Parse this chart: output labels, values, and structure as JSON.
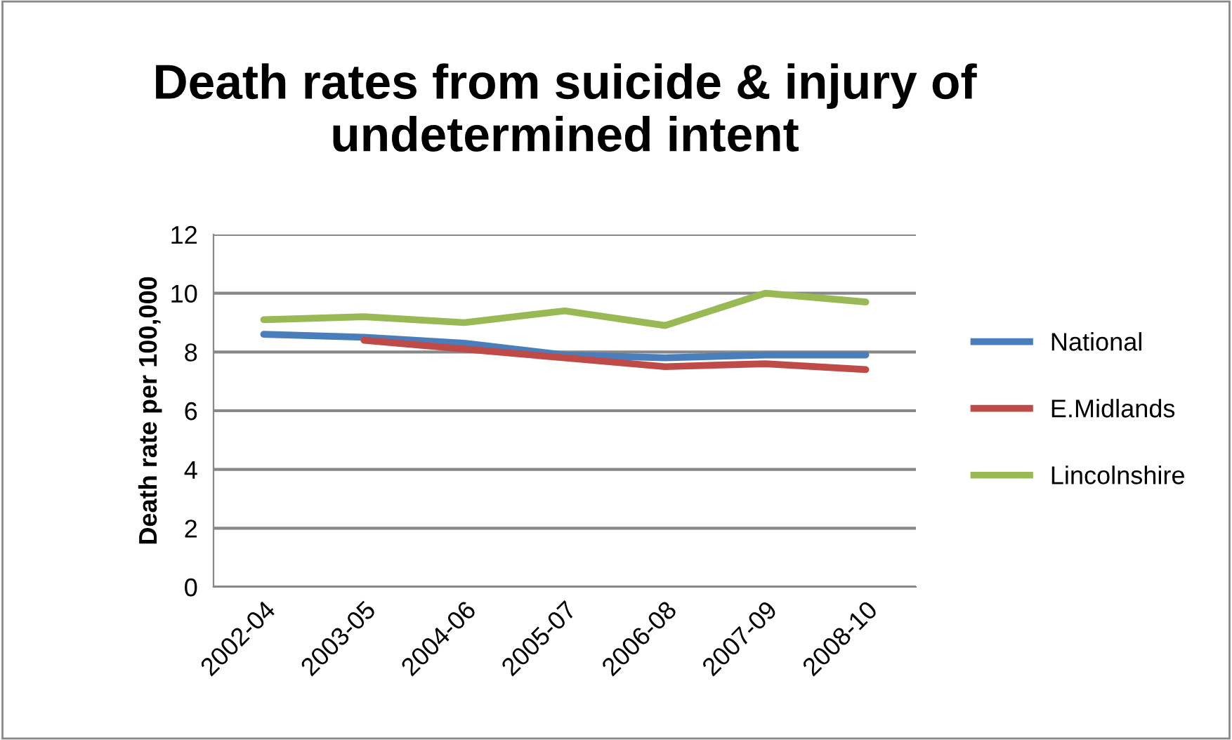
{
  "chart_data": {
    "type": "line",
    "title": "Death rates from suicide & injury of undetermined intent",
    "ylabel": "Death rate per 100,000",
    "categories": [
      "2002-04",
      "2003-05",
      "2004-06",
      "2005-07",
      "2006-08",
      "2007-09",
      "2008-10"
    ],
    "series": [
      {
        "name": "National",
        "color": "#4a7ebb",
        "values": [
          8.6,
          8.5,
          8.3,
          7.9,
          7.8,
          7.9,
          7.9
        ]
      },
      {
        "name": "E.Midlands",
        "color": "#be4b48",
        "values": [
          null,
          8.4,
          8.1,
          7.8,
          7.5,
          7.6,
          7.4
        ]
      },
      {
        "name": "Lincolnshire",
        "color": "#98b954",
        "values": [
          9.1,
          9.2,
          9.0,
          9.4,
          8.9,
          10.0,
          9.7
        ]
      }
    ],
    "ylim": [
      0,
      12
    ],
    "yticks": [
      0,
      2,
      4,
      6,
      8,
      10,
      12
    ],
    "grid": "y",
    "legend": "right",
    "marker": "none",
    "line_style": "solid"
  }
}
